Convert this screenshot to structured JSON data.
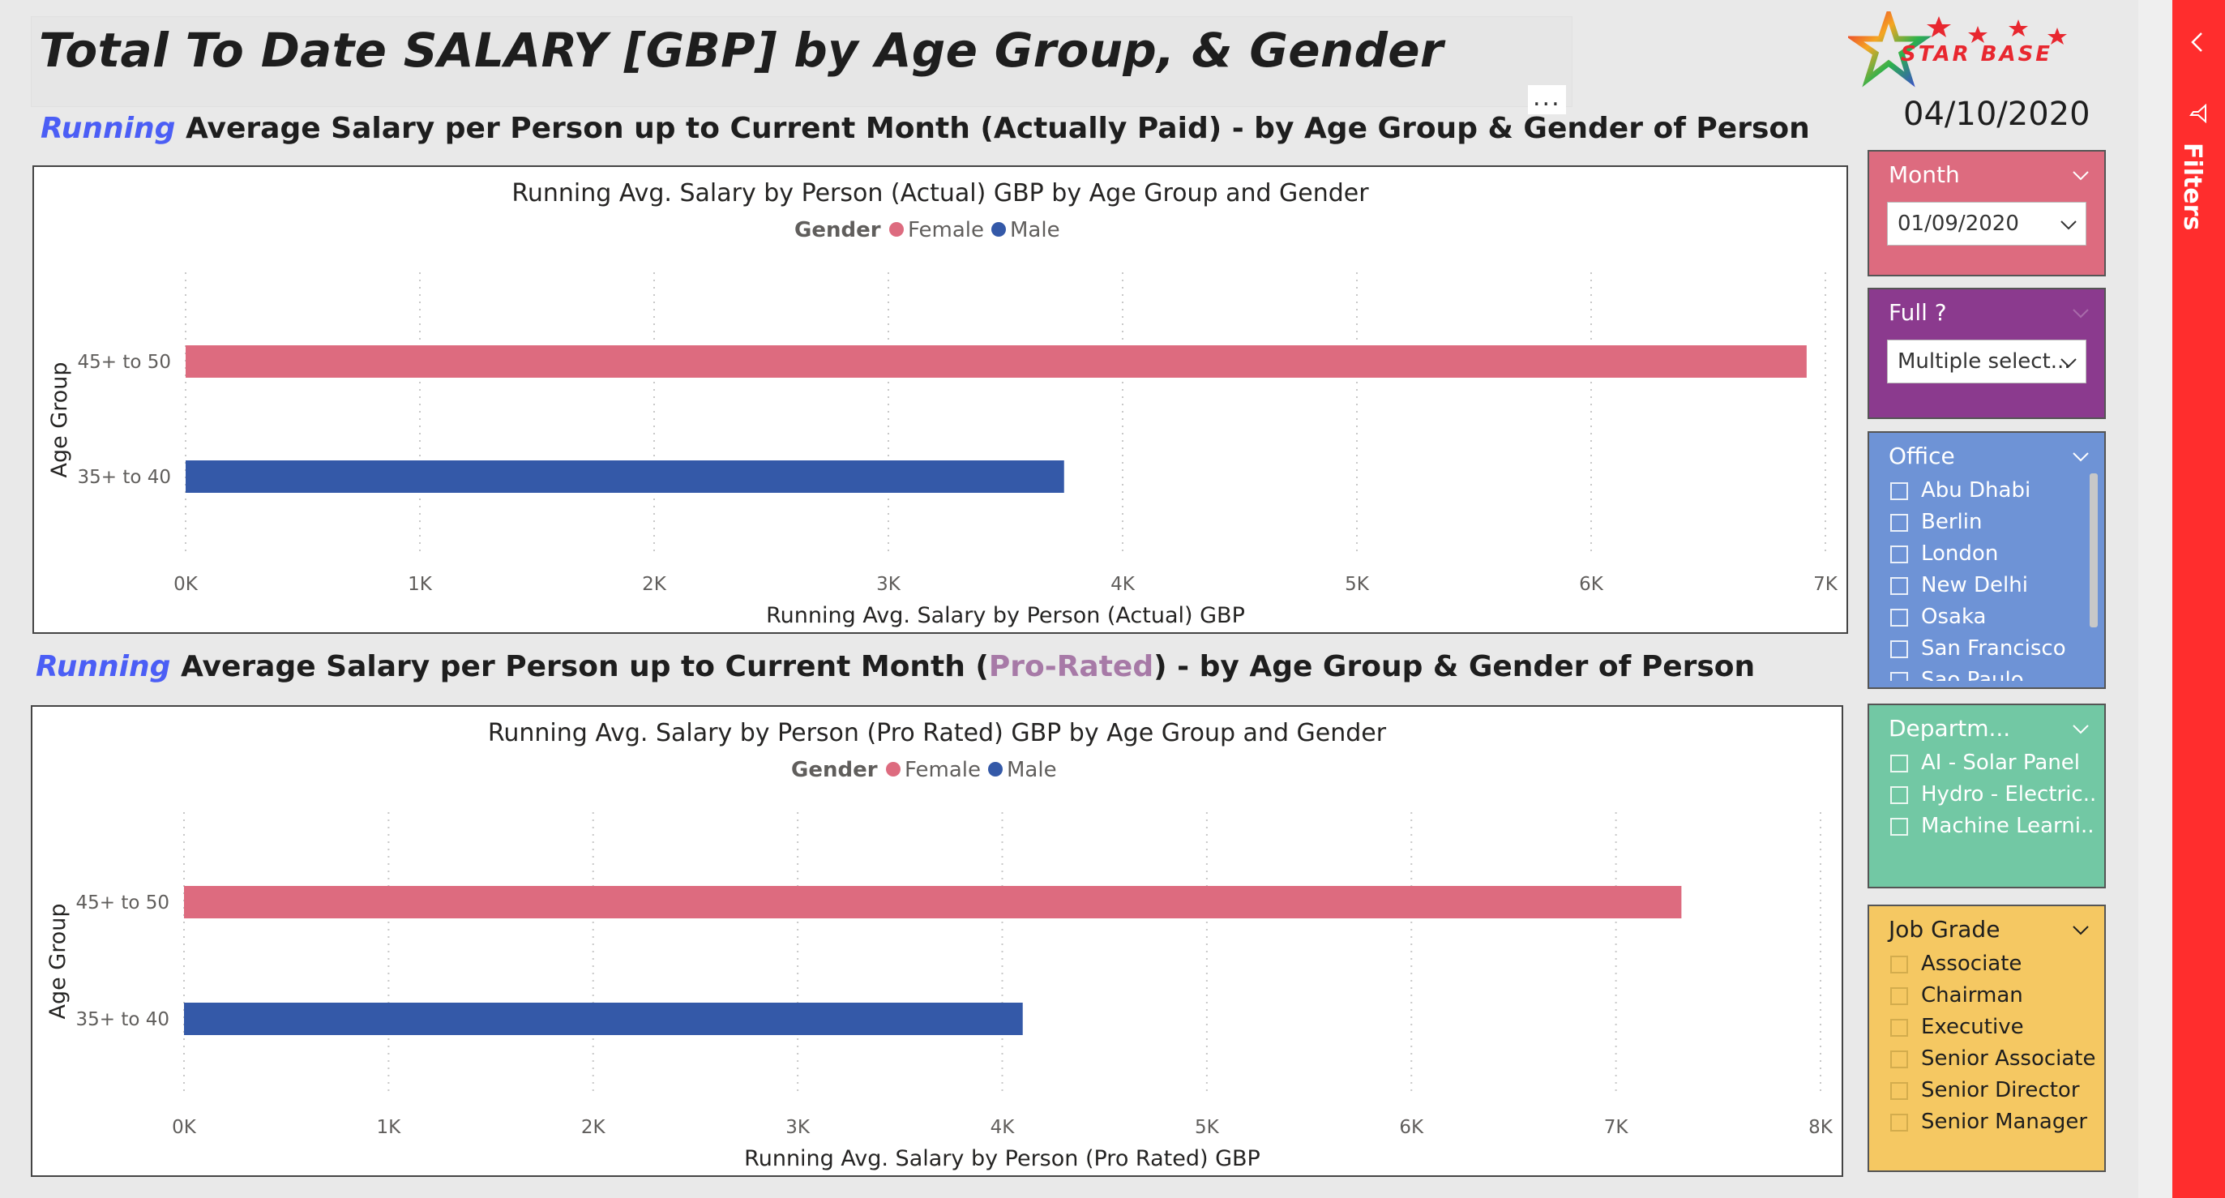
{
  "header": {
    "title": "Total To Date SALARY [GBP] by Age Group, & Gender",
    "more_options": "..."
  },
  "section1": {
    "running": "Running",
    "subtitle": "Average Salary per Person up to Current Month (Actually Paid) - by Age Group & Gender of Person"
  },
  "section2": {
    "running": "Running",
    "subtitle_pre": "Average Salary per Person up to Current Month (",
    "pro_rated": "Pro-Rated",
    "subtitle_post": ") - by Age Group & Gender of Person"
  },
  "chart_data": [
    {
      "type": "bar",
      "orientation": "horizontal",
      "title": "Running Avg. Salary by Person (Actual) GBP by Age Group and Gender",
      "xlabel": "Running Avg. Salary by Person (Actual) GBP",
      "ylabel": "Age Group",
      "legend_title": "Gender",
      "legend_placement": "top-center",
      "categories": [
        "45+ to 50",
        "35+ to 40"
      ],
      "series": [
        {
          "name": "Female",
          "color": "#dd6b7f",
          "values": [
            6920,
            null
          ]
        },
        {
          "name": "Male",
          "color": "#3459a8",
          "values": [
            null,
            3750
          ]
        }
      ],
      "xlim": [
        0,
        7000
      ],
      "xticks": [
        "0K",
        "1K",
        "2K",
        "3K",
        "4K",
        "5K",
        "6K",
        "7K"
      ],
      "grid": "vertical-dotted"
    },
    {
      "type": "bar",
      "orientation": "horizontal",
      "title": "Running Avg. Salary by Person (Pro Rated) GBP by Age Group and Gender",
      "xlabel": "Running Avg. Salary by Person (Pro Rated) GBP",
      "ylabel": "Age Group",
      "legend_title": "Gender",
      "legend_placement": "top-center",
      "categories": [
        "45+ to 50",
        "35+ to 40"
      ],
      "series": [
        {
          "name": "Female",
          "color": "#dd6b7f",
          "values": [
            7320,
            null
          ]
        },
        {
          "name": "Male",
          "color": "#3459a8",
          "values": [
            null,
            4100
          ]
        }
      ],
      "xlim": [
        0,
        8000
      ],
      "xticks": [
        "0K",
        "1K",
        "2K",
        "3K",
        "4K",
        "5K",
        "6K",
        "7K",
        "8K"
      ],
      "grid": "vertical-dotted"
    }
  ],
  "logo": {
    "text": "STAR BASE",
    "icon": "star-logo-icon"
  },
  "date": "04/10/2020",
  "slicers": {
    "month": {
      "label": "Month",
      "value": "01/09/2020",
      "color": "#dd6b7f"
    },
    "full": {
      "label": "Full ?",
      "value": "Multiple select...",
      "color": "#8b3a8e"
    },
    "office": {
      "label": "Office",
      "color": "#6e93d6",
      "items": [
        "Abu Dhabi",
        "Berlin",
        "London",
        "New Delhi",
        "Osaka",
        "San Francisco",
        "Sao Paulo"
      ]
    },
    "department": {
      "label": "Departm...",
      "color": "#72c8a4",
      "items": [
        "AI - Solar Panel",
        "Hydro - Electric...",
        "Machine Learni..."
      ]
    },
    "job_grade": {
      "label": "Job Grade",
      "color": "#f5c862",
      "items": [
        "Associate",
        "Chairman",
        "Executive",
        "Senior Associate",
        "Senior Director",
        "Senior Manager"
      ]
    }
  },
  "filters_pane": {
    "label": "Filters",
    "collapse_icon": "chevron-left-icon"
  }
}
